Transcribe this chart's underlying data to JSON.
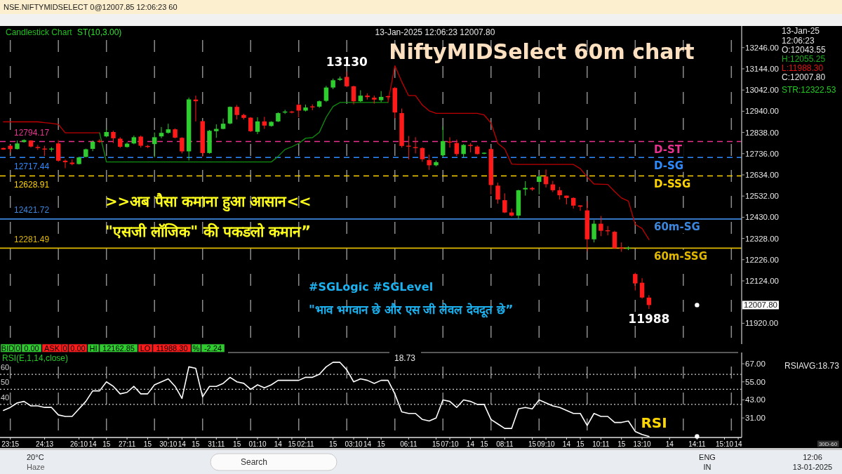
{
  "chart_data": [
    {
      "type": "candlestick",
      "title": "NiftyMIDSelect 60m chart",
      "categories": [
        null,
        null,
        null,
        null,
        null,
        null,
        null,
        null,
        null,
        null,
        null,
        null,
        null,
        null,
        null,
        null,
        null,
        null,
        null,
        null,
        null,
        null,
        null,
        null,
        null,
        null,
        null,
        null,
        null,
        null,
        null,
        null,
        null,
        null,
        null,
        null,
        null,
        null,
        null,
        null,
        null,
        null,
        null,
        null,
        null,
        null,
        null,
        null,
        null,
        null,
        null,
        null,
        null,
        null,
        null,
        null,
        null,
        null,
        null,
        null,
        null,
        null,
        null,
        null,
        null,
        null,
        null,
        null,
        null,
        null,
        null,
        null,
        null,
        null,
        null,
        null,
        null,
        null,
        null,
        null,
        null,
        null,
        null,
        null,
        null,
        null,
        null,
        null,
        null,
        null,
        null,
        null,
        null,
        null,
        null,
        null,
        null,
        null,
        null,
        null,
        null,
        null,
        null,
        null,
        null,
        null,
        null,
        null
      ],
      "ohlc": [
        [
          12763,
          12765,
          12754,
          12756
        ],
        [
          12774,
          12776,
          12742,
          12758
        ],
        [
          12758,
          12799,
          12756,
          12785
        ],
        [
          12792,
          12805,
          12789,
          12801
        ],
        [
          12799,
          12801,
          12765,
          12770
        ],
        [
          12768,
          12778,
          12754,
          12763
        ],
        [
          12759,
          12774,
          12725,
          12757
        ],
        [
          12757,
          12767,
          12745,
          12759
        ],
        [
          12785,
          12801,
          12697,
          12702
        ],
        [
          12702,
          12708,
          12666,
          12695
        ],
        [
          12693,
          12708,
          12680,
          12686
        ],
        [
          12686,
          12720,
          12684,
          12718
        ],
        [
          12720,
          12760,
          12718,
          12757
        ],
        [
          12759,
          12799,
          12748,
          12793
        ],
        [
          12797,
          12806,
          12788,
          12793
        ],
        [
          12819,
          12855,
          12815,
          12840
        ],
        [
          12840,
          12846,
          12787,
          12810
        ],
        [
          12808,
          12815,
          12763,
          12769
        ],
        [
          12768,
          12790,
          12765,
          12784
        ],
        [
          12785,
          12823,
          12781,
          12815
        ],
        [
          12818,
          12823,
          12765,
          12774
        ],
        [
          12773,
          12778,
          12763,
          12768
        ],
        [
          12782,
          12838,
          12718,
          12815
        ],
        [
          12819,
          12864,
          12810,
          12836
        ],
        [
          12836,
          12880,
          12832,
          12853
        ],
        [
          12853,
          12857,
          12810,
          12813
        ],
        [
          12812,
          12815,
          12737,
          12747
        ],
        [
          12747,
          13006,
          12703,
          12997
        ],
        [
          12996,
          13015,
          12891,
          12988
        ],
        [
          12892,
          12894,
          12722,
          12739
        ],
        [
          12739,
          12850,
          12736,
          12846
        ],
        [
          12844,
          12877,
          12812,
          12855
        ],
        [
          12855,
          12905,
          12853,
          12880
        ],
        [
          12881,
          12963,
          12877,
          12961
        ],
        [
          12961,
          12970,
          12900,
          12922
        ],
        [
          12922,
          12928,
          12900,
          12908
        ],
        [
          12909,
          12912,
          12840,
          12844
        ],
        [
          12841,
          12911,
          12830,
          12891
        ],
        [
          12891,
          12913,
          12855,
          12871
        ],
        [
          12869,
          12892,
          12866,
          12889
        ],
        [
          12891,
          12935,
          12888,
          12931
        ],
        [
          12934,
          12947,
          12927,
          12938
        ],
        [
          12938,
          12942,
          12930,
          12934
        ],
        [
          12971,
          12976,
          12911,
          12943
        ],
        [
          12943,
          12972,
          12939,
          12958
        ],
        [
          12962,
          12973,
          12945,
          12960
        ],
        [
          12962,
          12992,
          12956,
          12988
        ],
        [
          12990,
          13062,
          12984,
          13054
        ],
        [
          13054,
          13097,
          13046,
          13089
        ],
        [
          13091,
          13107,
          13086,
          13097
        ],
        [
          13105,
          13130,
          13055,
          13060
        ],
        [
          13060,
          13063,
          12973,
          12988
        ],
        [
          12988,
          13041,
          12984,
          13015
        ],
        [
          13015,
          13026,
          12996,
          13008
        ],
        [
          13005,
          13015,
          12977,
          12996
        ],
        [
          12993,
          13037,
          12984,
          13009
        ],
        [
          13011,
          13015,
          12996,
          13009
        ],
        [
          13052,
          13057,
          12905,
          12934
        ],
        [
          12931,
          12953,
          12765,
          12773
        ],
        [
          12773,
          12821,
          12708,
          12771
        ],
        [
          12767,
          12815,
          12737,
          12763
        ],
        [
          12763,
          12767,
          12697,
          12709
        ],
        [
          12705,
          12731,
          12658,
          12680
        ],
        [
          12680,
          12703,
          12675,
          12695
        ],
        [
          12728,
          12866,
          12718,
          12796
        ],
        [
          12793,
          12815,
          12765,
          12791
        ],
        [
          12787,
          12804,
          12725,
          12734
        ],
        [
          12734,
          12782,
          12717,
          12778
        ],
        [
          12778,
          12787,
          12742,
          12773
        ],
        [
          12770,
          12776,
          12731,
          12734
        ],
        [
          12736,
          12742,
          12733,
          12740
        ],
        [
          12758,
          12765,
          12540,
          12585
        ],
        [
          12582,
          12596,
          12495,
          12515
        ],
        [
          12512,
          12545,
          12450,
          12453
        ],
        [
          12453,
          12472,
          12433,
          12438
        ],
        [
          12438,
          12562,
          12419,
          12560
        ],
        [
          12564,
          12604,
          12534,
          12571
        ],
        [
          12571,
          12576,
          12557,
          12564
        ],
        [
          12600,
          12630,
          12540,
          12626
        ],
        [
          12626,
          12660,
          12573,
          12589
        ],
        [
          12588,
          12605,
          12551,
          12560
        ],
        [
          12560,
          12576,
          12515,
          12536
        ],
        [
          12534,
          12534,
          12492,
          12523
        ],
        [
          12523,
          12526,
          12472,
          12486
        ],
        [
          12487,
          12487,
          12461,
          12481
        ],
        [
          12463,
          12508,
          12267,
          12324
        ],
        [
          12324,
          12416,
          12309,
          12399
        ],
        [
          12399,
          12436,
          12339,
          12365
        ],
        [
          12366,
          12388,
          12343,
          12364
        ],
        [
          12360,
          12365,
          12281,
          12281
        ],
        [
          12283,
          12309,
          12264,
          12281
        ],
        [
          12280,
          12290,
          12272,
          12282
        ],
        [
          12157,
          12163,
          12078,
          12112
        ],
        [
          12115,
          12137,
          12039,
          12044
        ],
        [
          12043.55,
          12055.25,
          11988.3,
          12007.8
        ],
        null,
        null,
        null,
        null,
        null,
        null,
        null,
        null,
        null,
        null,
        null,
        null,
        null
      ],
      "colors": [
        "#ff1a1a",
        "#ff1a1a",
        "#2ecc2e",
        "#2ecc2e",
        "#ff1a1a",
        "#ff1a1a",
        "#ff1a1a",
        "#2ecc2e",
        "#ff1a1a",
        "#ff1a1a",
        "#ff1a1a",
        "#2ecc2e",
        "#2ecc2e",
        "#2ecc2e",
        "#ff1a1a",
        "#2ecc2e",
        "#ff1a1a",
        "#ff1a1a",
        "#2ecc2e",
        "#2ecc2e",
        "#ff1a1a",
        "#ff1a1a",
        "#2ecc2e",
        "#2ecc2e",
        "#2ecc2e",
        "#ff1a1a",
        "#ff1a1a",
        "#2ecc2e",
        "#ff1a1a",
        "#ff1a1a",
        "#2ecc2e",
        "#2ecc2e",
        "#2ecc2e",
        "#2ecc2e",
        "#ff1a1a",
        "#ff1a1a",
        "#ff1a1a",
        "#2ecc2e",
        "#ff1a1a",
        "#2ecc2e",
        "#2ecc2e",
        "#2ecc2e",
        "#ff1a1a",
        "#ff1a1a",
        "#2ecc2e",
        "#ff1a1a",
        "#2ecc2e",
        "#2ecc2e",
        "#2ecc2e",
        "#2ecc2e",
        "#ff1a1a",
        "#ff1a1a",
        "#2ecc2e",
        "#ff1a1a",
        "#ff1a1a",
        "#2ecc2e",
        "#ff1a1a",
        "#ff1a1a",
        "#ff1a1a",
        "#ff1a1a",
        "#ff1a1a",
        "#ff1a1a",
        "#ff1a1a",
        "#2ecc2e",
        "#2ecc2e",
        "#ff1a1a",
        "#ff1a1a",
        "#2ecc2e",
        "#ff1a1a",
        "#ff1a1a",
        "#2ecc2e",
        "#ff1a1a",
        "#ff1a1a",
        "#ff1a1a",
        "#ff1a1a",
        "#2ecc2e",
        "#2ecc2e",
        "#ff1a1a",
        "#2ecc2e",
        "#ff1a1a",
        "#ff1a1a",
        "#ff1a1a",
        "#ff1a1a",
        "#ff1a1a",
        "#ff1a1a",
        "#ff1a1a",
        "#2ecc2e",
        "#ff1a1a",
        "#ff1a1a",
        "#ff1a1a",
        "#ff1a1a",
        "#2ecc2e",
        "#ff1a1a",
        "#ff1a1a",
        "#ff1a1a",
        null,
        null,
        null,
        null,
        null,
        null,
        null,
        null,
        null,
        null,
        null,
        null,
        null
      ],
      "series": [
        {
          "type": "line",
          "color": "#c00000",
          "values": [
            12889,
            12889,
            12889,
            12889,
            12889,
            12889,
            12885,
            12882,
            12877,
            12836,
            12836,
            12836,
            12836,
            12836,
            12836,
            null,
            null,
            null,
            null,
            null,
            null,
            null,
            null,
            null,
            null,
            null,
            null,
            null,
            null,
            null,
            null,
            null,
            null,
            null,
            null,
            null,
            null,
            null,
            null,
            null,
            null,
            null,
            null,
            null,
            null,
            null,
            null,
            null,
            null,
            null,
            null,
            null,
            null,
            null,
            null,
            null,
            12982,
            13159,
            13082,
            13015,
            13015,
            12970,
            12942,
            12930,
            12930,
            12930,
            12930,
            12930,
            12930,
            12930,
            12922,
            12883,
            12785,
            12759,
            12686,
            12684,
            12684,
            12684,
            12684,
            12684,
            12684,
            12684,
            12684,
            12684,
            12664,
            12624,
            12590,
            12589,
            12588,
            12554,
            12523,
            12508,
            12396,
            12376,
            12322.53,
            null,
            null,
            null,
            null,
            null,
            null,
            null,
            null,
            null,
            null,
            null,
            null,
            null
          ]
        },
        {
          "type": "line",
          "color": "#109010",
          "values": [
            null,
            null,
            null,
            null,
            null,
            null,
            null,
            null,
            null,
            null,
            null,
            null,
            null,
            null,
            12836,
            12696,
            12696,
            12696,
            12696,
            12696,
            12696,
            12696,
            12696,
            12696,
            12696,
            12696,
            12696,
            12696,
            12696,
            12696,
            12696,
            12696,
            12696,
            12696,
            12696,
            12696,
            12696,
            12696,
            12696,
            12696,
            12723,
            12756,
            12769,
            12785,
            12810,
            12813,
            12838,
            12911,
            12963,
            12982,
            12982,
            12982,
            12982,
            12982,
            12982,
            12982,
            12982,
            null,
            null,
            null,
            null,
            null,
            null,
            null,
            null,
            null,
            null,
            null,
            null,
            null,
            null,
            null,
            null,
            null,
            null,
            null,
            null,
            null,
            null,
            null,
            null,
            null,
            null,
            null,
            null,
            null,
            null,
            null,
            null,
            null,
            null,
            null,
            null,
            null,
            null,
            null,
            null,
            null,
            null,
            null,
            null,
            null,
            null,
            null,
            null,
            null,
            null,
            null
          ]
        },
        {
          "type": "scatter",
          "color": "#ffffff",
          "marker": "circle",
          "values": [
            null,
            null,
            null,
            null,
            null,
            null,
            null,
            null,
            null,
            null,
            null,
            null,
            null,
            null,
            null,
            null,
            null,
            null,
            null,
            null,
            null,
            null,
            null,
            null,
            null,
            null,
            null,
            null,
            null,
            null,
            null,
            null,
            null,
            null,
            null,
            null,
            null,
            null,
            null,
            null,
            null,
            null,
            null,
            null,
            null,
            null,
            null,
            null,
            null,
            null,
            null,
            null,
            null,
            null,
            null,
            null,
            null,
            null,
            null,
            null,
            null,
            null,
            null,
            null,
            null,
            null,
            null,
            null,
            null,
            null,
            null,
            null,
            null,
            null,
            null,
            null,
            null,
            null,
            null,
            null,
            null,
            null,
            null,
            null,
            null,
            null,
            null,
            null,
            null,
            null,
            null,
            null,
            null,
            null,
            null,
            null,
            null,
            null,
            null,
            null,
            null,
            12007.8,
            null,
            null,
            null,
            null,
            null,
            null
          ]
        }
      ],
      "ylim": [
        11820,
        13350
      ],
      "yticks": [
        {
          "value": 13246,
          "label": "13246.00"
        },
        {
          "value": 13144,
          "label": "13144.00"
        },
        {
          "value": 13042,
          "label": "13042.00"
        },
        {
          "value": 12940,
          "label": "12940.00"
        },
        {
          "value": 12838,
          "label": "12838.00"
        },
        {
          "value": 12736,
          "label": "12736.00"
        },
        {
          "value": 12634,
          "label": "12634.00"
        },
        {
          "value": 12532,
          "label": "12532.00"
        },
        {
          "value": 12430,
          "label": "12430.00"
        },
        {
          "value": 12328,
          "label": "12328.00"
        },
        {
          "value": 12226,
          "label": "12226.00"
        },
        {
          "value": 12124,
          "label": "12124.00"
        },
        {
          "value": 11920,
          "label": "11920.00"
        }
      ],
      "ref_lines": [
        {
          "axis": "y",
          "value": 12794.17,
          "label": "D-ST",
          "color": "#e8338f",
          "line_style": "dashed"
        },
        {
          "axis": "y",
          "value": 12717.44,
          "label": "D-SG",
          "color": "#2e8bff",
          "line_style": "dashed"
        },
        {
          "axis": "y",
          "value": 12628.91,
          "label": "D-SSG",
          "color": "#ffd400",
          "line_style": "dashed"
        },
        {
          "axis": "y",
          "value": 12421.72,
          "label": "60m-SG",
          "color": "#3d86dd",
          "line_style": "solid"
        },
        {
          "axis": "y",
          "value": 12281.49,
          "label": "60m-SSG",
          "color": "#e0b800",
          "line_style": "solid"
        }
      ],
      "annotations": [
        "NSE.NIFTYMIDSELECT 0@12007.85 12:06:23 60",
        "Candlestick Chart",
        "ST(10,3.00)",
        "13-Jan-2025 12:06:23 12007.80",
        ">>अब पैसा कमाना हुआ आसान<<",
        "\"एसजी लॉजिक\" की पकडलो कमान”",
        "#SGLogic #SGLevel",
        "\"भाव भगवान छे और एस जी लेवल देवदूत छे”",
        {
          "text": "13130",
          "y": 13130
        },
        {
          "text": "11988",
          "y": 11988
        },
        "12007.80",
        "13-Jan-25",
        "12:06:23",
        "O:12043.55",
        "H:12055.25",
        "L:11988.30",
        "C:12007.80",
        "STR:12322.53",
        {
          "text": "12794.17",
          "y": 12794.17
        },
        {
          "text": "12717.44",
          "y": 12717.44
        },
        {
          "text": "12628.91",
          "y": 12628.91
        },
        {
          "text": "12421.72",
          "y": 12421.72
        },
        {
          "text": "12281.49",
          "y": 12281.49
        }
      ],
      "tick_labels": "y",
      "grid": "x"
    },
    {
      "type": "line",
      "categories": [
        null,
        "23:15",
        null,
        null,
        null,
        null,
        "24:13",
        null,
        null,
        null,
        null,
        "26:10",
        null,
        "14",
        null,
        "15",
        null,
        null,
        "27:11",
        null,
        null,
        "15",
        null,
        null,
        "30:10",
        null,
        "14",
        null,
        "15",
        null,
        null,
        "31:11",
        null,
        null,
        "15",
        null,
        null,
        "01:10",
        null,
        null,
        "14",
        null,
        "15",
        null,
        "02:11",
        null,
        null,
        null,
        "15",
        null,
        null,
        "03:10",
        null,
        "14",
        null,
        "15",
        null,
        null,
        null,
        "06:11",
        null,
        null,
        null,
        "15",
        null,
        "07:10",
        null,
        null,
        "14",
        null,
        "15",
        null,
        null,
        "08:11",
        null,
        null,
        null,
        "15",
        null,
        "09:10",
        null,
        null,
        "14",
        null,
        "15",
        null,
        null,
        "10:11",
        null,
        null,
        "15",
        null,
        null,
        "13:10",
        null,
        null,
        null,
        "14",
        null,
        null,
        null,
        "14:11",
        null,
        null,
        null,
        "15:10",
        null,
        "14"
      ],
      "series": [
        {
          "color": "#ffffff",
          "values": [
            36,
            38,
            41,
            42,
            39,
            39,
            38,
            38,
            33,
            32,
            32,
            37,
            42,
            49,
            49,
            55,
            52,
            47,
            48,
            52,
            47,
            47,
            53,
            55,
            57,
            52,
            44,
            65,
            64,
            45,
            52,
            52,
            54,
            58,
            55,
            54,
            50,
            53,
            51,
            53,
            56,
            56,
            56,
            56,
            58,
            58,
            60,
            65,
            68,
            68,
            63,
            55,
            57,
            56,
            54,
            56,
            56,
            47,
            35,
            34,
            34,
            30,
            29,
            31,
            43,
            42,
            38,
            43,
            42,
            40,
            40,
            30,
            27,
            24,
            24,
            37,
            38,
            37,
            43,
            41,
            39,
            38,
            36,
            34,
            34,
            26,
            34,
            32,
            32,
            28,
            28,
            29,
            22,
            20,
            18.73,
            null,
            null,
            null,
            null,
            null,
            null,
            null,
            null,
            null,
            null,
            null,
            null,
            null
          ]
        },
        {
          "type": "scatter",
          "color": "#ffffff",
          "marker": "circle",
          "values": [
            null,
            null,
            null,
            null,
            null,
            null,
            null,
            null,
            null,
            null,
            null,
            null,
            null,
            null,
            null,
            null,
            null,
            null,
            null,
            null,
            null,
            null,
            null,
            null,
            null,
            null,
            null,
            null,
            null,
            null,
            null,
            null,
            null,
            null,
            null,
            null,
            null,
            null,
            null,
            null,
            null,
            null,
            null,
            null,
            null,
            null,
            null,
            null,
            null,
            null,
            null,
            null,
            null,
            null,
            null,
            null,
            null,
            null,
            null,
            null,
            null,
            null,
            null,
            null,
            null,
            null,
            null,
            null,
            null,
            null,
            null,
            null,
            null,
            null,
            null,
            null,
            null,
            null,
            null,
            null,
            null,
            null,
            null,
            null,
            null,
            null,
            null,
            null,
            null,
            null,
            null,
            null,
            null,
            null,
            null,
            null,
            null,
            null,
            null,
            null,
            null,
            18.73,
            null,
            null,
            null,
            null,
            null,
            null
          ]
        }
      ],
      "ylim": [
        18,
        74.5
      ],
      "yticks": [
        {
          "value": 67,
          "label": "67.00"
        },
        {
          "value": 55,
          "label": "55.00"
        },
        {
          "value": 43,
          "label": "43.00"
        },
        {
          "value": 31,
          "label": "31.00"
        }
      ],
      "ref_lines": [
        {
          "axis": "y",
          "value": 60,
          "color": "#cfcfcf",
          "line_style": "dotted"
        },
        {
          "axis": "y",
          "value": 50,
          "color": "#cfcfcf",
          "line_style": "dotted"
        },
        {
          "axis": "y",
          "value": 40,
          "color": "#cfcfcf",
          "line_style": "dotted"
        }
      ],
      "annotations": [
        "BID",
        "0",
        "0.00",
        "ASK",
        "0",
        "0.00",
        "HI",
        "12162.85",
        "LO",
        "11988.30",
        "%",
        "-2.24",
        "RSI(E,1,14,close)",
        "18.73",
        "RSIAVG:18.73",
        "RSI",
        "30D-60",
        "20°C",
        "Haze",
        "Search",
        "ENG",
        "IN",
        "12:06",
        "13-01-2025",
        {
          "text": "60",
          "y": 60
        },
        {
          "text": "50",
          "y": 50
        },
        {
          "text": "40",
          "y": 40
        }
      ],
      "grid": "x"
    }
  ]
}
